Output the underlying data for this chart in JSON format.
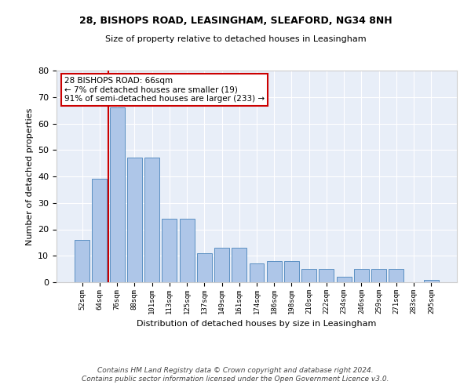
{
  "title1": "28, BISHOPS ROAD, LEASINGHAM, SLEAFORD, NG34 8NH",
  "title2": "Size of property relative to detached houses in Leasingham",
  "xlabel": "Distribution of detached houses by size in Leasingham",
  "ylabel": "Number of detached properties",
  "categories": [
    "52sqm",
    "64sqm",
    "76sqm",
    "88sqm",
    "101sqm",
    "113sqm",
    "125sqm",
    "137sqm",
    "149sqm",
    "161sqm",
    "174sqm",
    "186sqm",
    "198sqm",
    "210sqm",
    "222sqm",
    "234sqm",
    "246sqm",
    "259sqm",
    "271sqm",
    "283sqm",
    "295sqm"
  ],
  "values": [
    16,
    39,
    66,
    47,
    47,
    24,
    24,
    11,
    13,
    13,
    7,
    8,
    8,
    5,
    5,
    2,
    5,
    5,
    5,
    0,
    1
  ],
  "bar_color": "#aec6e8",
  "bar_edge_color": "#5a8fc2",
  "vline_x": 1.5,
  "vline_color": "#cc0000",
  "annotation_text": "28 BISHOPS ROAD: 66sqm\n← 7% of detached houses are smaller (19)\n91% of semi-detached houses are larger (233) →",
  "annotation_box_color": "#ffffff",
  "annotation_box_edge": "#cc0000",
  "ylim": [
    0,
    80
  ],
  "yticks": [
    0,
    10,
    20,
    30,
    40,
    50,
    60,
    70,
    80
  ],
  "bg_color": "#e8eef8",
  "footer": "Contains HM Land Registry data © Crown copyright and database right 2024.\nContains public sector information licensed under the Open Government Licence v3.0."
}
